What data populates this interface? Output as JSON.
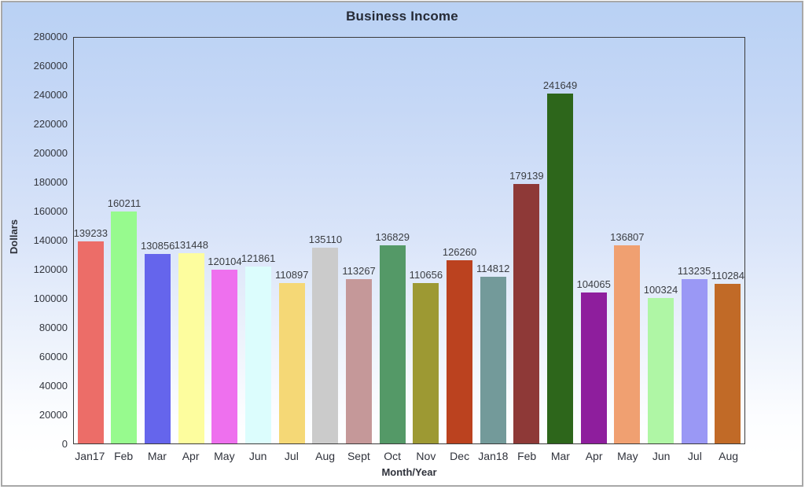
{
  "frame": {
    "border_color": "#A8A8A8",
    "background_top_color": "#B9D1F4",
    "background_bottom_color": "#FFFFFF"
  },
  "chart_data": {
    "type": "bar",
    "title": "Business Income",
    "xlabel": "Month/Year",
    "ylabel": "Dollars",
    "ylim": [
      0,
      280000
    ],
    "ytick_step": 20000,
    "grid": false,
    "legend": false,
    "value_labels_shown": true,
    "categories": [
      "Jan17",
      "Feb",
      "Mar",
      "Apr",
      "May",
      "Jun",
      "Jul",
      "Aug",
      "Sept",
      "Oct",
      "Nov",
      "Dec",
      "Jan18",
      "Feb",
      "Mar",
      "Apr",
      "May",
      "Jun",
      "Jul",
      "Aug"
    ],
    "values": [
      139233,
      160211,
      130856,
      131448,
      120104,
      121861,
      110897,
      135110,
      113267,
      136829,
      110656,
      126260,
      114812,
      179139,
      241649,
      104065,
      136807,
      100324,
      113235,
      110284
    ],
    "bar_colors": [
      "#EC6D68",
      "#97FA8E",
      "#6565EC",
      "#FDFD9E",
      "#EE70EE",
      "#DCFDFD",
      "#F5D876",
      "#CBCBCB",
      "#C59899",
      "#549967",
      "#9D9933",
      "#BB421F",
      "#739A9A",
      "#8E3937",
      "#2D661B",
      "#8E1E9D",
      "#F0A071",
      "#AFF6A5",
      "#9A98F5",
      "#C16A27"
    ],
    "colors": {
      "axis": "#3B3B3B",
      "tick_text": "#33363E",
      "category_text": "#2F323B",
      "value_label_text": "#3A3D42",
      "title_text": "#262B36",
      "axis_title_text": "#2F323B"
    }
  }
}
